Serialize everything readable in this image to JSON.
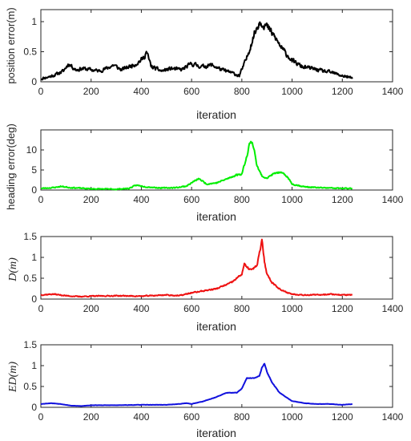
{
  "chart_data": [
    {
      "type": "line",
      "xlabel": "iteration",
      "ylabel": "position error(m)",
      "xlim": [
        0,
        1400
      ],
      "ylim": [
        0,
        1.2
      ],
      "xticks": [
        0,
        200,
        400,
        600,
        800,
        1000,
        1200,
        1400
      ],
      "yticks": [
        0,
        0.5,
        1
      ],
      "ytick_labels": [
        "0",
        "0.5",
        "1"
      ],
      "color": "#000000",
      "noise": 0.06,
      "seed": 11,
      "series": [
        {
          "x": [
            0,
            30,
            60,
            90,
            110,
            140,
            170,
            200,
            230,
            260,
            290,
            320,
            350,
            380,
            410,
            420,
            440,
            480,
            520,
            560,
            600,
            640,
            680,
            720,
            760,
            790,
            820,
            850,
            870,
            880,
            900,
            930,
            960,
            1000,
            1040,
            1080,
            1120,
            1160,
            1200,
            1240
          ],
          "values": [
            0.05,
            0.08,
            0.12,
            0.18,
            0.3,
            0.2,
            0.22,
            0.2,
            0.18,
            0.22,
            0.28,
            0.2,
            0.25,
            0.3,
            0.4,
            0.5,
            0.25,
            0.18,
            0.22,
            0.2,
            0.3,
            0.25,
            0.28,
            0.2,
            0.15,
            0.1,
            0.4,
            0.8,
            1.0,
            0.98,
            0.92,
            0.75,
            0.55,
            0.35,
            0.25,
            0.22,
            0.18,
            0.15,
            0.1,
            0.06
          ]
        }
      ]
    },
    {
      "type": "line",
      "xlabel": "iteration",
      "ylabel": "heading error(deg)",
      "xlim": [
        0,
        1400
      ],
      "ylim": [
        0,
        15
      ],
      "xticks": [
        0,
        200,
        400,
        600,
        800,
        1000,
        1200,
        1400
      ],
      "yticks": [
        0,
        5,
        10
      ],
      "ytick_labels": [
        "0",
        "5",
        "10"
      ],
      "color": "#00ee00",
      "noise": 0.35,
      "seed": 23,
      "series": [
        {
          "x": [
            0,
            50,
            80,
            120,
            200,
            300,
            350,
            380,
            420,
            480,
            540,
            580,
            610,
            630,
            660,
            700,
            750,
            780,
            800,
            820,
            830,
            840,
            850,
            860,
            880,
            900,
            920,
            940,
            960,
            980,
            1000,
            1050,
            1100,
            1150,
            1200,
            1240
          ],
          "values": [
            0.4,
            0.6,
            0.9,
            0.6,
            0.3,
            0.2,
            0.4,
            1.2,
            0.8,
            0.5,
            0.6,
            1.0,
            2.2,
            2.8,
            1.5,
            1.8,
            3.0,
            3.8,
            4.0,
            8.5,
            11.5,
            12.0,
            10.0,
            6.0,
            3.5,
            3.0,
            3.8,
            4.4,
            4.2,
            3.4,
            1.5,
            0.8,
            0.6,
            0.5,
            0.4,
            0.4
          ]
        }
      ]
    },
    {
      "type": "line",
      "xlabel": "iteration",
      "ylabel": "D(m)",
      "xlim": [
        0,
        1400
      ],
      "ylim": [
        0,
        1.5
      ],
      "xticks": [
        0,
        200,
        400,
        600,
        800,
        1000,
        1200,
        1400
      ],
      "yticks": [
        0,
        0.5,
        1,
        1.5
      ],
      "ytick_labels": [
        "0",
        "0.5",
        "1",
        "1.5"
      ],
      "color": "#ee1111",
      "noise": 0.03,
      "seed": 37,
      "series": [
        {
          "x": [
            0,
            50,
            100,
            150,
            200,
            300,
            400,
            500,
            550,
            600,
            650,
            700,
            740,
            760,
            780,
            800,
            810,
            820,
            840,
            860,
            870,
            880,
            890,
            900,
            920,
            960,
            1000,
            1050,
            1100,
            1150,
            1200,
            1240
          ],
          "values": [
            0.1,
            0.12,
            0.08,
            0.06,
            0.07,
            0.08,
            0.07,
            0.1,
            0.08,
            0.15,
            0.2,
            0.25,
            0.35,
            0.4,
            0.5,
            0.6,
            0.85,
            0.75,
            0.7,
            0.8,
            1.1,
            1.4,
            0.9,
            0.6,
            0.4,
            0.2,
            0.12,
            0.1,
            0.1,
            0.12,
            0.1,
            0.1
          ]
        }
      ]
    },
    {
      "type": "line",
      "xlabel": "iteration",
      "ylabel": "ED(m)",
      "xlim": [
        0,
        1400
      ],
      "ylim": [
        0,
        1.5
      ],
      "xticks": [
        0,
        200,
        400,
        600,
        800,
        1000,
        1200,
        1400
      ],
      "yticks": [
        0,
        0.5,
        1,
        1.5
      ],
      "ytick_labels": [
        "0",
        "0.5",
        "1",
        "1.5"
      ],
      "color": "#1111dd",
      "noise": 0.008,
      "seed": 53,
      "series": [
        {
          "x": [
            0,
            40,
            80,
            120,
            160,
            200,
            300,
            400,
            500,
            550,
            580,
            600,
            650,
            700,
            740,
            780,
            800,
            820,
            850,
            870,
            880,
            890,
            900,
            920,
            950,
            1000,
            1050,
            1100,
            1150,
            1200,
            1240
          ],
          "values": [
            0.08,
            0.1,
            0.08,
            0.04,
            0.03,
            0.05,
            0.05,
            0.06,
            0.06,
            0.08,
            0.1,
            0.08,
            0.15,
            0.25,
            0.35,
            0.35,
            0.45,
            0.7,
            0.7,
            0.75,
            0.95,
            1.05,
            0.85,
            0.6,
            0.35,
            0.15,
            0.1,
            0.08,
            0.08,
            0.06,
            0.08
          ]
        }
      ]
    }
  ]
}
